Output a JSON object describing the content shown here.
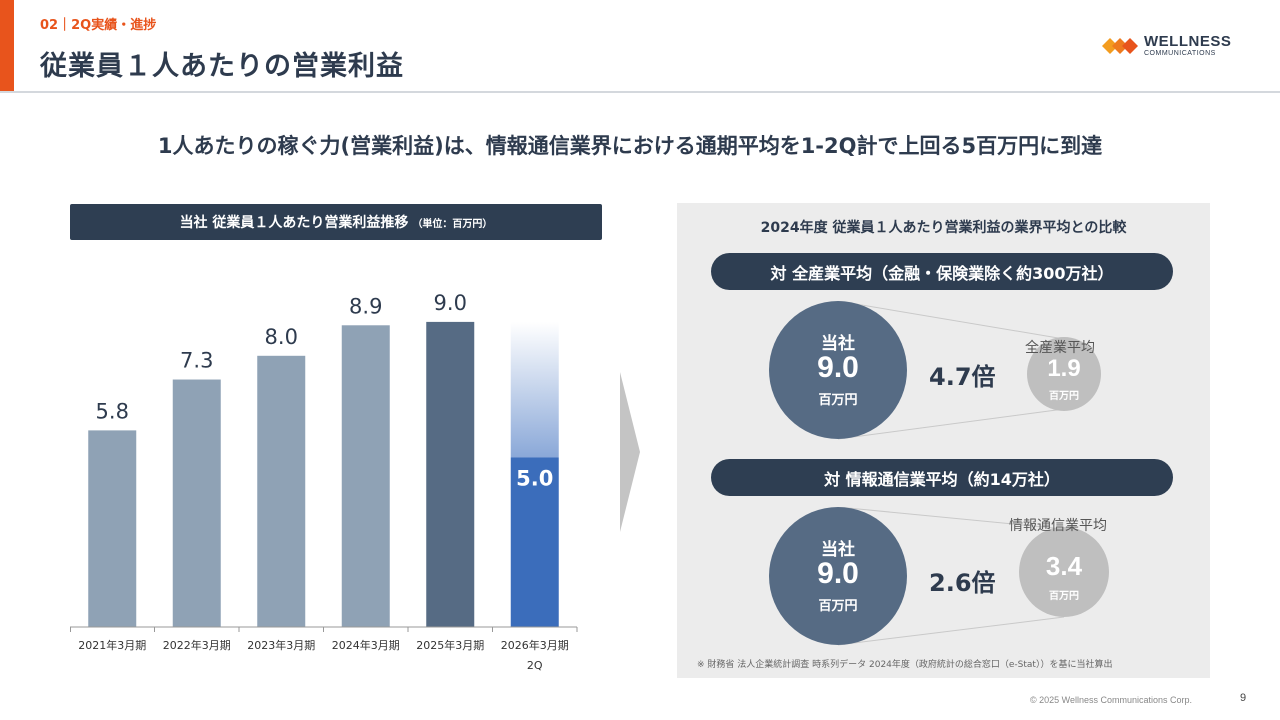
{
  "header": {
    "section_label": "02｜2Q実績・進捗",
    "title": "従業員１人あたりの営業利益"
  },
  "logo": {
    "name": "WELLNESS",
    "sub": "COMMUNICATIONS",
    "colors": [
      "#f39c1f",
      "#e8541c"
    ]
  },
  "headline": "1人あたりの稼ぐ力(営業利益)は、情報通信業界における通期平均を1-2Q計で上回る5百万円に到達",
  "chart": {
    "header": "当社 従業員１人あたり営業利益推移",
    "unit": "（単位：百万円）"
  },
  "chart_data": {
    "type": "bar",
    "title": "当社 従業員１人あたり営業利益推移",
    "unit": "（単位：百万円）",
    "categories": [
      "2021年3月期",
      "2022年3月期",
      "2023年3月期",
      "2024年3月期",
      "2025年3月期",
      "2026年3月期\n2Q"
    ],
    "values": [
      5.8,
      7.3,
      8.0,
      8.9,
      9.0,
      5.0
    ],
    "labels": [
      "5.8",
      "7.3",
      "8.0",
      "8.9",
      "9.0",
      "5.0"
    ],
    "colors": [
      "#8fa2b5",
      "#8fa2b5",
      "#8fa2b5",
      "#8fa2b5",
      "#566b84",
      "#3b6dbb"
    ],
    "full_year_reference": 9.0,
    "ylim": [
      0,
      10
    ],
    "grid": false
  },
  "comparison": {
    "title": "2024年度 従業員１人あたり営業利益の業界平均との比較",
    "groups": [
      {
        "header": "対 全産業平均（金融・保険業除く約300万社）",
        "company_label": "当社",
        "company_value": "9.0",
        "company_unit": "百万円",
        "ratio": "4.7倍",
        "peer_label": "全産業平均",
        "peer_value": "1.9",
        "peer_unit": "百万円"
      },
      {
        "header": "対 情報通信業平均（約14万社）",
        "company_label": "当社",
        "company_value": "9.0",
        "company_unit": "百万円",
        "ratio": "2.6倍",
        "peer_label": "情報通信業平均",
        "peer_value": "3.4",
        "peer_unit": "百万円"
      }
    ],
    "source_note": "※ 財務省 法人企業統計調査 時系列データ 2024年度（政府統計の総合窓口（e-Stat））を基に当社算出"
  },
  "footer": {
    "copyright": "© 2025 Wellness Communications Corp.",
    "page_number": "9"
  }
}
